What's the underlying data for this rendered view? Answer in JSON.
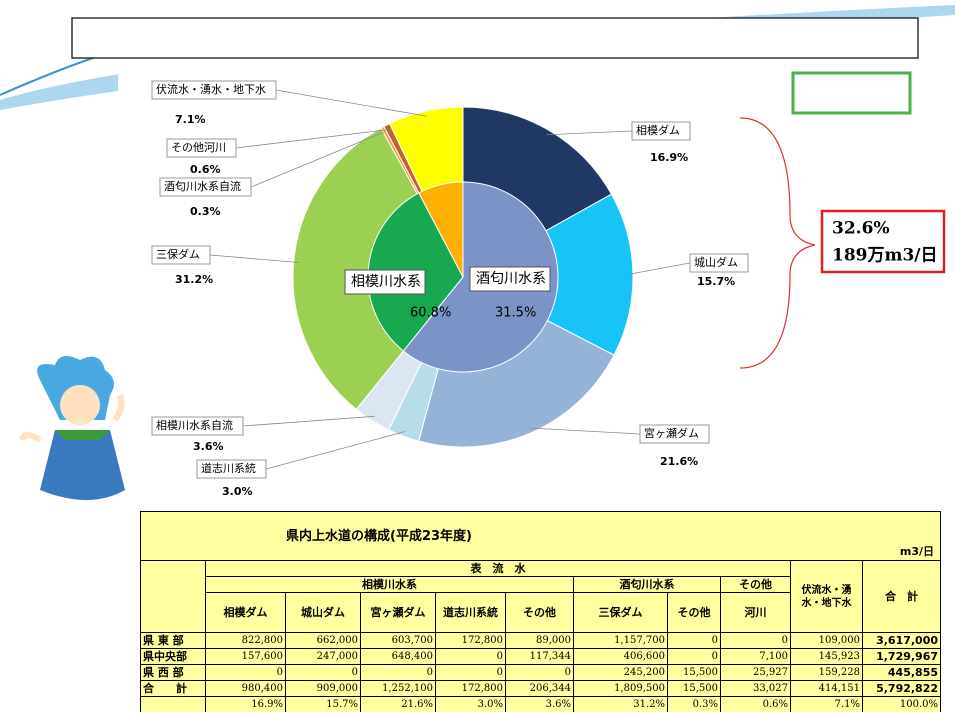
{
  "chart_data": {
    "type": "pie",
    "categories": [
      "相模ダム",
      "城山ダム",
      "宮ヶ瀬ダム",
      "道志川系統",
      "相模川水系自流",
      "三保ダム",
      "酒匂川水系自流",
      "その他河川",
      "伏流水・湧水・地下水"
    ],
    "values": [
      16.9,
      15.7,
      21.6,
      3.0,
      3.6,
      31.2,
      0.3,
      0.6,
      7.1
    ],
    "value_labels": [
      "16.9%",
      "15.7%",
      "21.6%",
      "3.0%",
      "3.6%",
      "31.2%",
      "0.3%",
      "0.6%",
      "7.1%"
    ],
    "colors": [
      "#1f3864",
      "#19c3f5",
      "#95b3d7",
      "#b7dde8",
      "#dce6f2",
      "#9bd053",
      "#f79646",
      "#c0642d",
      "#ffff00"
    ],
    "inner": {
      "categories": [
        "相模川水系",
        "酒匂川水系",
        null
      ],
      "values": [
        60.8,
        31.5,
        7.7
      ],
      "value_labels": [
        "60.8%",
        "31.5%",
        null
      ],
      "colors": [
        "#7b93c7",
        "#18a850",
        "#ffb000"
      ]
    }
  },
  "callout": {
    "lines": [
      "32.6%",
      "189万m3/日"
    ]
  },
  "table": {
    "title": "県内上水道の構成(平成23年度)",
    "unit": "m3/日",
    "header_top": "表　流　水",
    "groups": [
      "相模川水系",
      "酒匂川水系",
      "その他"
    ],
    "columns": [
      "相模ダム",
      "城山ダム",
      "宮ヶ瀬ダム",
      "道志川系統",
      "その他",
      "三保ダム",
      "その他",
      "河川",
      "伏流水・湧水・地下水",
      "合　計"
    ],
    "rows": [
      [
        "県 東 部",
        "822,800",
        "662,000",
        "603,700",
        "172,800",
        "89,000",
        "1,157,700",
        "0",
        "0",
        "109,000",
        "3,617,000"
      ],
      [
        "県中央部",
        "157,600",
        "247,000",
        "648,400",
        "0",
        "117,344",
        "406,600",
        "0",
        "7,100",
        "145,923",
        "1,729,967"
      ],
      [
        "県 西 部",
        "0",
        "0",
        "0",
        "0",
        "0",
        "245,200",
        "15,500",
        "25,927",
        "159,228",
        "445,855"
      ],
      [
        "合　　計",
        "980,400",
        "909,000",
        "1,252,100",
        "172,800",
        "206,344",
        "1,809,500",
        "15,500",
        "33,027",
        "414,151",
        "5,792,822"
      ]
    ],
    "percent_row": [
      "16.9%",
      "15.7%",
      "21.6%",
      "3.0%",
      "3.6%",
      "31.2%",
      "0.3%",
      "0.6%",
      "7.1%",
      "100.0%"
    ]
  }
}
